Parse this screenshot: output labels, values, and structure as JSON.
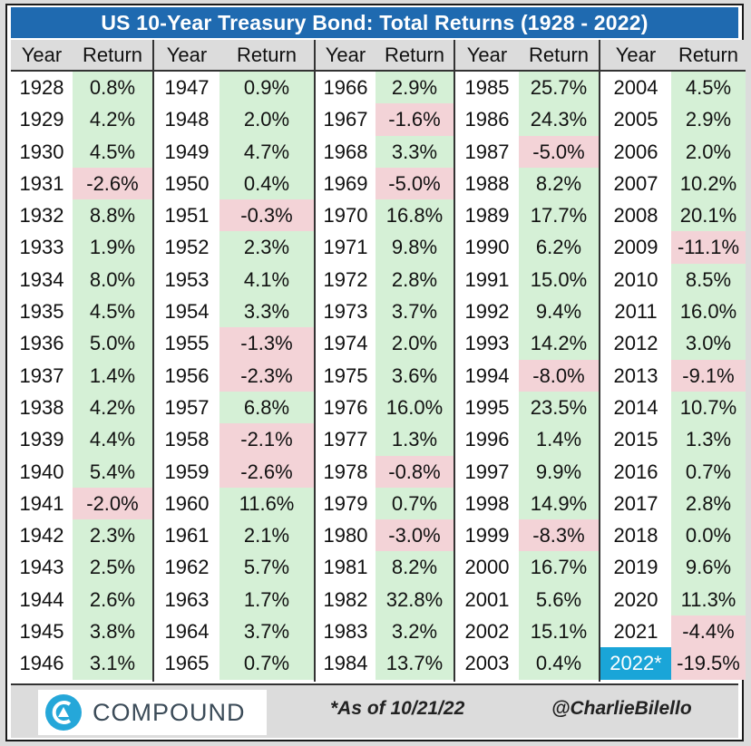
{
  "title": "US 10-Year Treasury Bond: Total Returns (1928 - 2022)",
  "footer": {
    "logo_text": "COMPOUND",
    "as_of": "*As of 10/21/22",
    "handle": "@CharlieBilello"
  },
  "colors": {
    "header": "#1f6ab0",
    "positive": "#d5f0d6",
    "negative": "#f3d3d7",
    "highlight": "#1aa5d8"
  },
  "chart_data": {
    "type": "table",
    "title": "US 10-Year Treasury Bond: Total Returns (1928 - 2022)",
    "columns": [
      "Year",
      "Return"
    ],
    "groups": [
      [
        [
          "1928",
          "0.8%"
        ],
        [
          "1929",
          "4.2%"
        ],
        [
          "1930",
          "4.5%"
        ],
        [
          "1931",
          "-2.6%"
        ],
        [
          "1932",
          "8.8%"
        ],
        [
          "1933",
          "1.9%"
        ],
        [
          "1934",
          "8.0%"
        ],
        [
          "1935",
          "4.5%"
        ],
        [
          "1936",
          "5.0%"
        ],
        [
          "1937",
          "1.4%"
        ],
        [
          "1938",
          "4.2%"
        ],
        [
          "1939",
          "4.4%"
        ],
        [
          "1940",
          "5.4%"
        ],
        [
          "1941",
          "-2.0%"
        ],
        [
          "1942",
          "2.3%"
        ],
        [
          "1943",
          "2.5%"
        ],
        [
          "1944",
          "2.6%"
        ],
        [
          "1945",
          "3.8%"
        ],
        [
          "1946",
          "3.1%"
        ]
      ],
      [
        [
          "1947",
          "0.9%"
        ],
        [
          "1948",
          "2.0%"
        ],
        [
          "1949",
          "4.7%"
        ],
        [
          "1950",
          "0.4%"
        ],
        [
          "1951",
          "-0.3%"
        ],
        [
          "1952",
          "2.3%"
        ],
        [
          "1953",
          "4.1%"
        ],
        [
          "1954",
          "3.3%"
        ],
        [
          "1955",
          "-1.3%"
        ],
        [
          "1956",
          "-2.3%"
        ],
        [
          "1957",
          "6.8%"
        ],
        [
          "1958",
          "-2.1%"
        ],
        [
          "1959",
          "-2.6%"
        ],
        [
          "1960",
          "11.6%"
        ],
        [
          "1961",
          "2.1%"
        ],
        [
          "1962",
          "5.7%"
        ],
        [
          "1963",
          "1.7%"
        ],
        [
          "1964",
          "3.7%"
        ],
        [
          "1965",
          "0.7%"
        ]
      ],
      [
        [
          "1966",
          "2.9%"
        ],
        [
          "1967",
          "-1.6%"
        ],
        [
          "1968",
          "3.3%"
        ],
        [
          "1969",
          "-5.0%"
        ],
        [
          "1970",
          "16.8%"
        ],
        [
          "1971",
          "9.8%"
        ],
        [
          "1972",
          "2.8%"
        ],
        [
          "1973",
          "3.7%"
        ],
        [
          "1974",
          "2.0%"
        ],
        [
          "1975",
          "3.6%"
        ],
        [
          "1976",
          "16.0%"
        ],
        [
          "1977",
          "1.3%"
        ],
        [
          "1978",
          "-0.8%"
        ],
        [
          "1979",
          "0.7%"
        ],
        [
          "1980",
          "-3.0%"
        ],
        [
          "1981",
          "8.2%"
        ],
        [
          "1982",
          "32.8%"
        ],
        [
          "1983",
          "3.2%"
        ],
        [
          "1984",
          "13.7%"
        ]
      ],
      [
        [
          "1985",
          "25.7%"
        ],
        [
          "1986",
          "24.3%"
        ],
        [
          "1987",
          "-5.0%"
        ],
        [
          "1988",
          "8.2%"
        ],
        [
          "1989",
          "17.7%"
        ],
        [
          "1990",
          "6.2%"
        ],
        [
          "1991",
          "15.0%"
        ],
        [
          "1992",
          "9.4%"
        ],
        [
          "1993",
          "14.2%"
        ],
        [
          "1994",
          "-8.0%"
        ],
        [
          "1995",
          "23.5%"
        ],
        [
          "1996",
          "1.4%"
        ],
        [
          "1997",
          "9.9%"
        ],
        [
          "1998",
          "14.9%"
        ],
        [
          "1999",
          "-8.3%"
        ],
        [
          "2000",
          "16.7%"
        ],
        [
          "2001",
          "5.6%"
        ],
        [
          "2002",
          "15.1%"
        ],
        [
          "2003",
          "0.4%"
        ]
      ],
      [
        [
          "2004",
          "4.5%"
        ],
        [
          "2005",
          "2.9%"
        ],
        [
          "2006",
          "2.0%"
        ],
        [
          "2007",
          "10.2%"
        ],
        [
          "2008",
          "20.1%"
        ],
        [
          "2009",
          "-11.1%"
        ],
        [
          "2010",
          "8.5%"
        ],
        [
          "2011",
          "16.0%"
        ],
        [
          "2012",
          "3.0%"
        ],
        [
          "2013",
          "-9.1%"
        ],
        [
          "2014",
          "10.7%"
        ],
        [
          "2015",
          "1.3%"
        ],
        [
          "2016",
          "0.7%"
        ],
        [
          "2017",
          "2.8%"
        ],
        [
          "2018",
          "0.0%"
        ],
        [
          "2019",
          "9.6%"
        ],
        [
          "2020",
          "11.3%"
        ],
        [
          "2021",
          "-4.4%"
        ],
        [
          "2022*",
          "-19.5%"
        ]
      ]
    ],
    "highlight_year": "2022*"
  }
}
